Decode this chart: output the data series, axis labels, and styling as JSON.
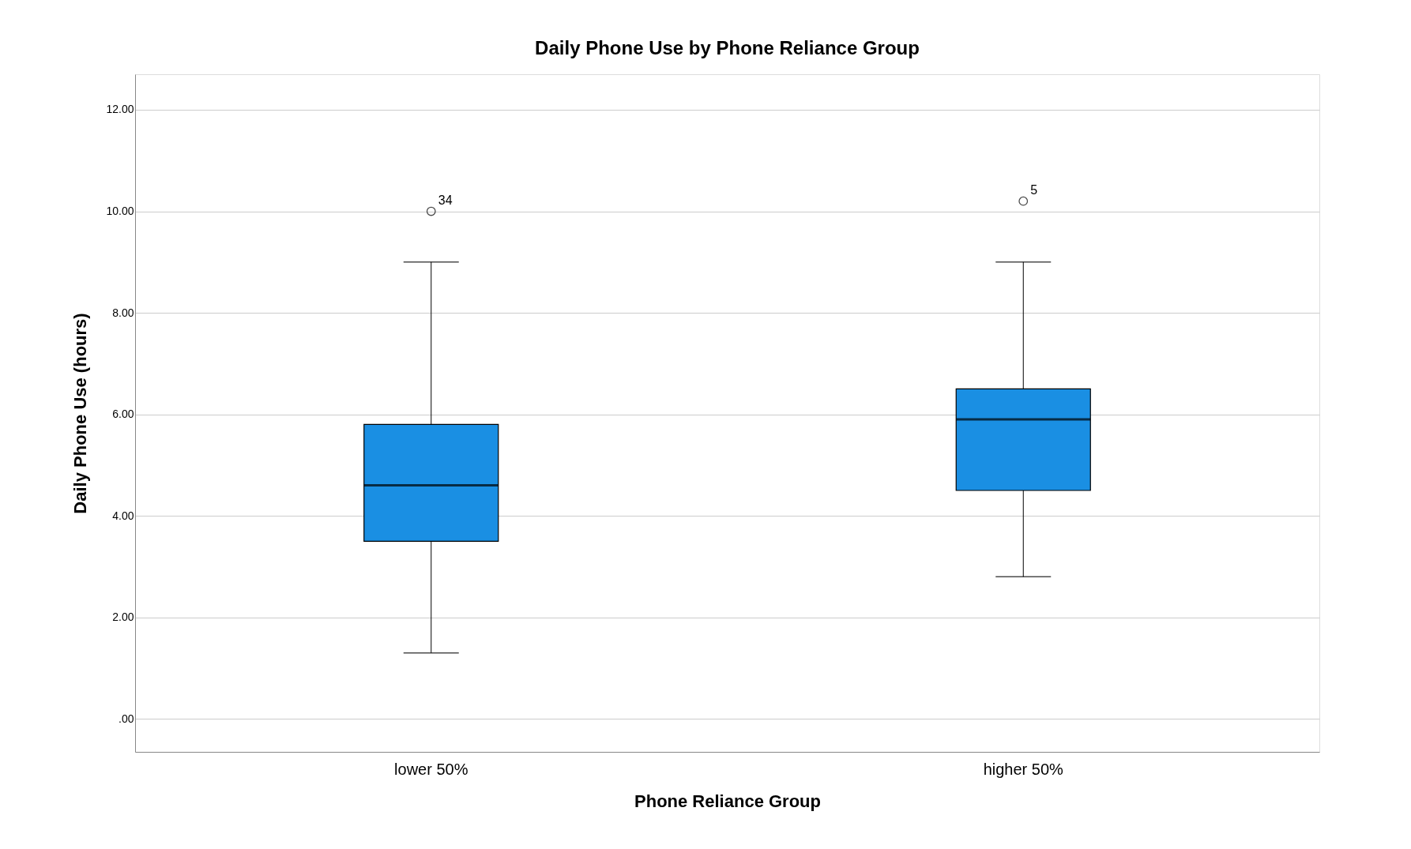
{
  "chart_data": {
    "type": "box",
    "title": "Daily Phone Use by Phone Reliance Group",
    "xlabel": "Phone Reliance Group",
    "ylabel": "Daily Phone Use (hours)",
    "categories": [
      "lower 50%",
      "higher 50%"
    ],
    "color": "#1a8fe3",
    "boxes": [
      {
        "low": 1.3,
        "q1": 3.5,
        "median": 4.6,
        "q3": 5.8,
        "high": 9.0,
        "outliers": [
          10.0
        ]
      },
      {
        "low": 2.8,
        "q1": 4.5,
        "median": 5.9,
        "q3": 6.5,
        "high": 9.0,
        "outliers": [
          10.2
        ]
      }
    ],
    "annotations": [
      "34",
      "5"
    ],
    "ylim": [
      -0.65,
      12.7
    ],
    "yticks": [
      {
        "value": 0,
        "label": ".00"
      },
      {
        "value": 2,
        "label": "2.00"
      },
      {
        "value": 4,
        "label": "4.00"
      },
      {
        "value": 6,
        "label": "6.00"
      },
      {
        "value": 8,
        "label": "8.00"
      },
      {
        "value": 10,
        "label": "10.00"
      },
      {
        "value": 12,
        "label": "12.00"
      }
    ],
    "grid": "y"
  }
}
